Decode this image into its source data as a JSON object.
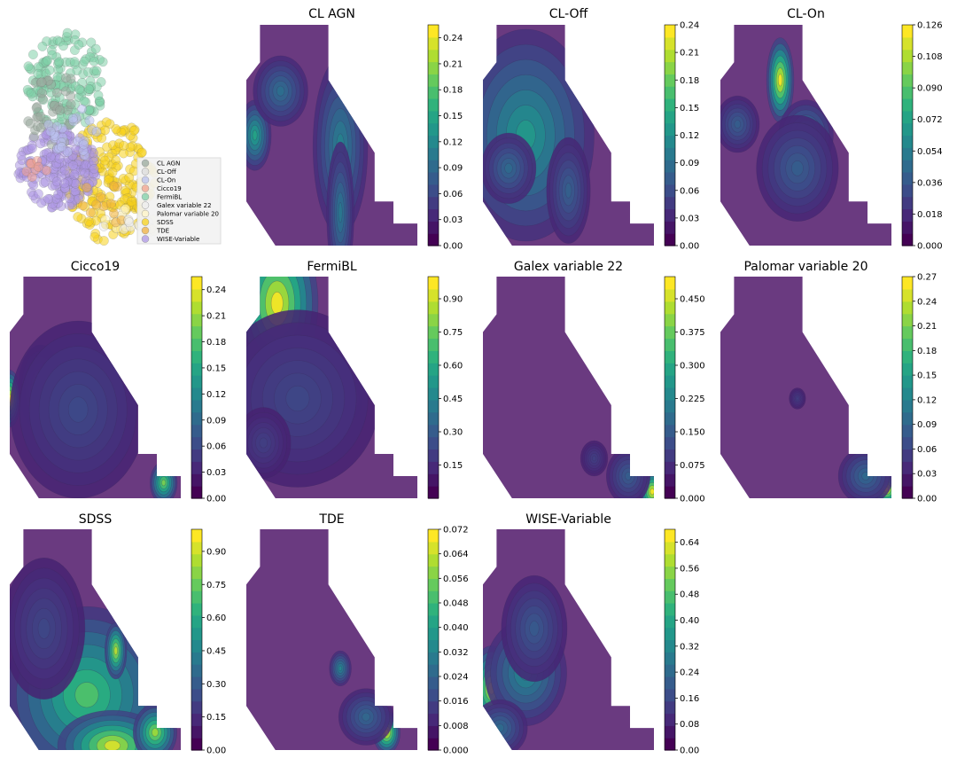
{
  "chart_data": {
    "type": "heatmap",
    "scatter": {
      "type": "scatter",
      "legend_placement": "lower-right",
      "legend": [
        {
          "label": "CL AGN",
          "color": "#9aaa9f"
        },
        {
          "label": "CL-Off",
          "color": "#dcdcdc"
        },
        {
          "label": "CL-On",
          "color": "#b9c1ee"
        },
        {
          "label": "Cicco19",
          "color": "#f2a38f"
        },
        {
          "label": "FermiBL",
          "color": "#7fd0a8"
        },
        {
          "label": "Galex variable 22",
          "color": "#ececec"
        },
        {
          "label": "Palomar variable 20",
          "color": "#fff6c8"
        },
        {
          "label": "SDSS",
          "color": "#f7d21a"
        },
        {
          "label": "TDE",
          "color": "#f0b040"
        },
        {
          "label": "WISE-Variable",
          "color": "#ad97e4"
        }
      ]
    },
    "colormap": "viridis",
    "grid": false,
    "panels": [
      {
        "title": "CL AGN",
        "ticks": [
          "0.00",
          "0.03",
          "0.06",
          "0.09",
          "0.12",
          "0.15",
          "0.18",
          "0.21",
          "0.24"
        ],
        "vmax": 0.255,
        "blobs": [
          [
            0.72,
            0.22,
            0.08,
            0.12,
            0.25
          ],
          [
            0.05,
            0.5,
            0.06,
            0.1,
            0.14
          ],
          [
            0.55,
            0.55,
            0.1,
            0.25,
            0.1
          ],
          [
            0.2,
            0.3,
            0.1,
            0.1,
            0.08
          ],
          [
            0.55,
            0.85,
            0.05,
            0.2,
            0.09
          ]
        ]
      },
      {
        "title": "CL-Off",
        "ticks": [
          "0.00",
          "0.03",
          "0.06",
          "0.09",
          "0.12",
          "0.15",
          "0.18",
          "0.21",
          "0.24"
        ],
        "vmax": 0.24,
        "blobs": [
          [
            0.08,
            0.38,
            0.05,
            0.07,
            0.24
          ],
          [
            0.25,
            0.5,
            0.25,
            0.3,
            0.12
          ],
          [
            0.15,
            0.65,
            0.1,
            0.1,
            0.07
          ],
          [
            0.5,
            0.75,
            0.08,
            0.15,
            0.06
          ]
        ]
      },
      {
        "title": "CL-On",
        "ticks": [
          "0.000",
          "0.018",
          "0.036",
          "0.054",
          "0.072",
          "0.090",
          "0.108",
          "0.126"
        ],
        "vmax": 0.126,
        "blobs": [
          [
            0.35,
            0.25,
            0.05,
            0.12,
            0.126
          ],
          [
            0.5,
            0.5,
            0.1,
            0.1,
            0.05
          ],
          [
            0.1,
            0.45,
            0.08,
            0.08,
            0.03
          ],
          [
            0.45,
            0.65,
            0.15,
            0.15,
            0.03
          ]
        ]
      },
      {
        "title": "Cicco19",
        "ticks": [
          "0.00",
          "0.03",
          "0.06",
          "0.09",
          "0.12",
          "0.15",
          "0.18",
          "0.21",
          "0.24"
        ],
        "vmax": 0.255,
        "blobs": [
          [
            0.0,
            0.55,
            0.04,
            0.08,
            0.255
          ],
          [
            0.18,
            0.5,
            0.08,
            0.12,
            0.1
          ],
          [
            0.9,
            0.93,
            0.05,
            0.06,
            0.2
          ],
          [
            0.4,
            0.6,
            0.25,
            0.25,
            0.04
          ]
        ]
      },
      {
        "title": "FermiBL",
        "ticks": [
          "0.15",
          "0.30",
          "0.45",
          "0.60",
          "0.75",
          "0.90"
        ],
        "vmax": 1.0,
        "blobs": [
          [
            0.18,
            0.12,
            0.15,
            0.22,
            1.0
          ],
          [
            0.6,
            0.55,
            0.05,
            0.06,
            0.45
          ],
          [
            0.3,
            0.55,
            0.3,
            0.25,
            0.15
          ],
          [
            0.1,
            0.75,
            0.1,
            0.1,
            0.12
          ]
        ]
      },
      {
        "title": "Galex variable 22",
        "ticks": [
          "0.000",
          "0.075",
          "0.150",
          "0.225",
          "0.300",
          "0.375",
          "0.450"
        ],
        "vmax": 0.5,
        "blobs": [
          [
            0.99,
            0.97,
            0.05,
            0.06,
            0.5
          ],
          [
            0.85,
            0.9,
            0.08,
            0.08,
            0.12
          ],
          [
            0.65,
            0.82,
            0.05,
            0.05,
            0.06
          ]
        ]
      },
      {
        "title": "Palomar variable 20",
        "ticks": [
          "0.00",
          "0.03",
          "0.06",
          "0.09",
          "0.12",
          "0.15",
          "0.18",
          "0.21",
          "0.24",
          "0.27"
        ],
        "vmax": 0.27,
        "blobs": [
          [
            0.97,
            0.96,
            0.06,
            0.05,
            0.27
          ],
          [
            0.85,
            0.9,
            0.1,
            0.08,
            0.08
          ],
          [
            0.45,
            0.55,
            0.03,
            0.03,
            0.03
          ]
        ]
      },
      {
        "title": "SDSS",
        "ticks": [
          "0.00",
          "0.15",
          "0.30",
          "0.45",
          "0.60",
          "0.75",
          "0.90"
        ],
        "vmax": 1.0,
        "blobs": [
          [
            0.45,
            0.75,
            0.3,
            0.25,
            0.7
          ],
          [
            0.6,
            0.98,
            0.2,
            0.1,
            0.95
          ],
          [
            0.62,
            0.55,
            0.04,
            0.08,
            0.9
          ],
          [
            0.85,
            0.92,
            0.08,
            0.08,
            0.85
          ],
          [
            0.2,
            0.45,
            0.15,
            0.2,
            0.15
          ]
        ]
      },
      {
        "title": "TDE",
        "ticks": [
          "0.000",
          "0.008",
          "0.016",
          "0.024",
          "0.032",
          "0.040",
          "0.048",
          "0.056",
          "0.064",
          "0.072"
        ],
        "vmax": 0.072,
        "blobs": [
          [
            0.82,
            0.92,
            0.05,
            0.06,
            0.072
          ],
          [
            0.55,
            0.63,
            0.04,
            0.05,
            0.03
          ],
          [
            0.7,
            0.85,
            0.1,
            0.08,
            0.02
          ]
        ]
      },
      {
        "title": "WISE-Variable",
        "ticks": [
          "0.00",
          "0.08",
          "0.16",
          "0.24",
          "0.32",
          "0.40",
          "0.48",
          "0.56",
          "0.64"
        ],
        "vmax": 0.68,
        "blobs": [
          [
            0.05,
            0.72,
            0.08,
            0.12,
            0.62
          ],
          [
            0.25,
            0.65,
            0.15,
            0.15,
            0.3
          ],
          [
            0.3,
            0.45,
            0.12,
            0.15,
            0.15
          ],
          [
            0.1,
            0.9,
            0.1,
            0.08,
            0.2
          ]
        ]
      }
    ]
  }
}
